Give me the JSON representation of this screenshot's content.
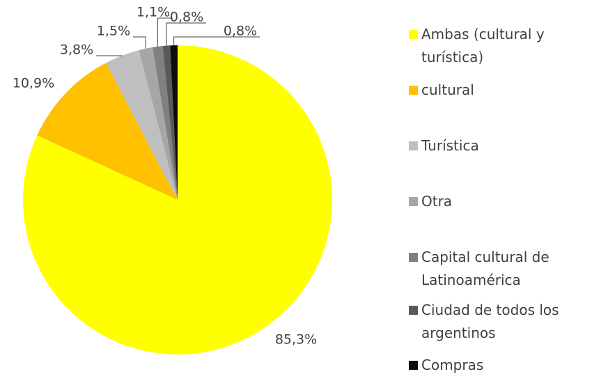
{
  "chart_data": {
    "type": "pie",
    "categories": [
      "Ambas (cultural y turística)",
      "cultural",
      "Turística",
      "Otra",
      "Capital cultural de Latinoamérica",
      "Ciudad de todos los argentinos",
      "Compras"
    ],
    "values": [
      85.3,
      10.9,
      3.8,
      1.5,
      1.1,
      0.8,
      0.8
    ],
    "value_labels": [
      "85,3%",
      "10,9%",
      "3,8%",
      "1,5%",
      "1,1%",
      "0,8%",
      "0,8%"
    ],
    "colors": [
      "#ffff00",
      "#ffc000",
      "#bfbfbf",
      "#a6a6a6",
      "#808080",
      "#595959",
      "#0d0d0d"
    ],
    "legend": "right"
  }
}
